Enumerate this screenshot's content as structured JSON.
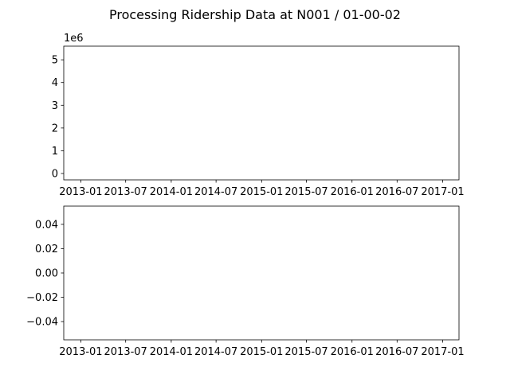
{
  "figure": {
    "title": "Processing Ridership Data at N001 / 01-00-02"
  },
  "chart_data": [
    {
      "type": "line",
      "title": "",
      "xlabel": "",
      "ylabel": "",
      "x_axis_type": "date",
      "xlim": [
        "2012-10-24",
        "2017-03-08"
      ],
      "ylim": [
        -280000,
        5600000
      ],
      "y_offset_label": "1e6",
      "x_ticks": [
        {
          "value": "2013-01-01",
          "label": "2013-01"
        },
        {
          "value": "2013-07-01",
          "label": "2013-07"
        },
        {
          "value": "2014-01-01",
          "label": "2014-01"
        },
        {
          "value": "2014-07-01",
          "label": "2014-07"
        },
        {
          "value": "2015-01-01",
          "label": "2015-01"
        },
        {
          "value": "2015-07-01",
          "label": "2015-07"
        },
        {
          "value": "2016-01-01",
          "label": "2016-01"
        },
        {
          "value": "2016-07-01",
          "label": "2016-07"
        },
        {
          "value": "2017-01-01",
          "label": "2017-01"
        }
      ],
      "y_ticks": [
        {
          "value": 0,
          "label": "0"
        },
        {
          "value": 1000000,
          "label": "1"
        },
        {
          "value": 2000000,
          "label": "2"
        },
        {
          "value": 3000000,
          "label": "3"
        },
        {
          "value": 4000000,
          "label": "4"
        },
        {
          "value": 5000000,
          "label": "5"
        }
      ],
      "grid": false,
      "series": []
    },
    {
      "type": "line",
      "title": "",
      "xlabel": "",
      "ylabel": "",
      "x_axis_type": "date",
      "xlim": [
        "2012-10-24",
        "2017-03-08"
      ],
      "ylim": [
        -0.055,
        0.055
      ],
      "x_ticks": [
        {
          "value": "2013-01-01",
          "label": "2013-01"
        },
        {
          "value": "2013-07-01",
          "label": "2013-07"
        },
        {
          "value": "2014-01-01",
          "label": "2014-01"
        },
        {
          "value": "2014-07-01",
          "label": "2014-07"
        },
        {
          "value": "2015-01-01",
          "label": "2015-01"
        },
        {
          "value": "2015-07-01",
          "label": "2015-07"
        },
        {
          "value": "2016-01-01",
          "label": "2016-01"
        },
        {
          "value": "2016-07-01",
          "label": "2016-07"
        },
        {
          "value": "2017-01-01",
          "label": "2017-01"
        }
      ],
      "y_ticks": [
        {
          "value": 0.04,
          "label": "0.04"
        },
        {
          "value": 0.02,
          "label": "0.02"
        },
        {
          "value": 0.0,
          "label": "0.00"
        },
        {
          "value": -0.02,
          "label": "−0.02"
        },
        {
          "value": -0.04,
          "label": "−0.04"
        }
      ],
      "grid": false,
      "series": []
    }
  ]
}
